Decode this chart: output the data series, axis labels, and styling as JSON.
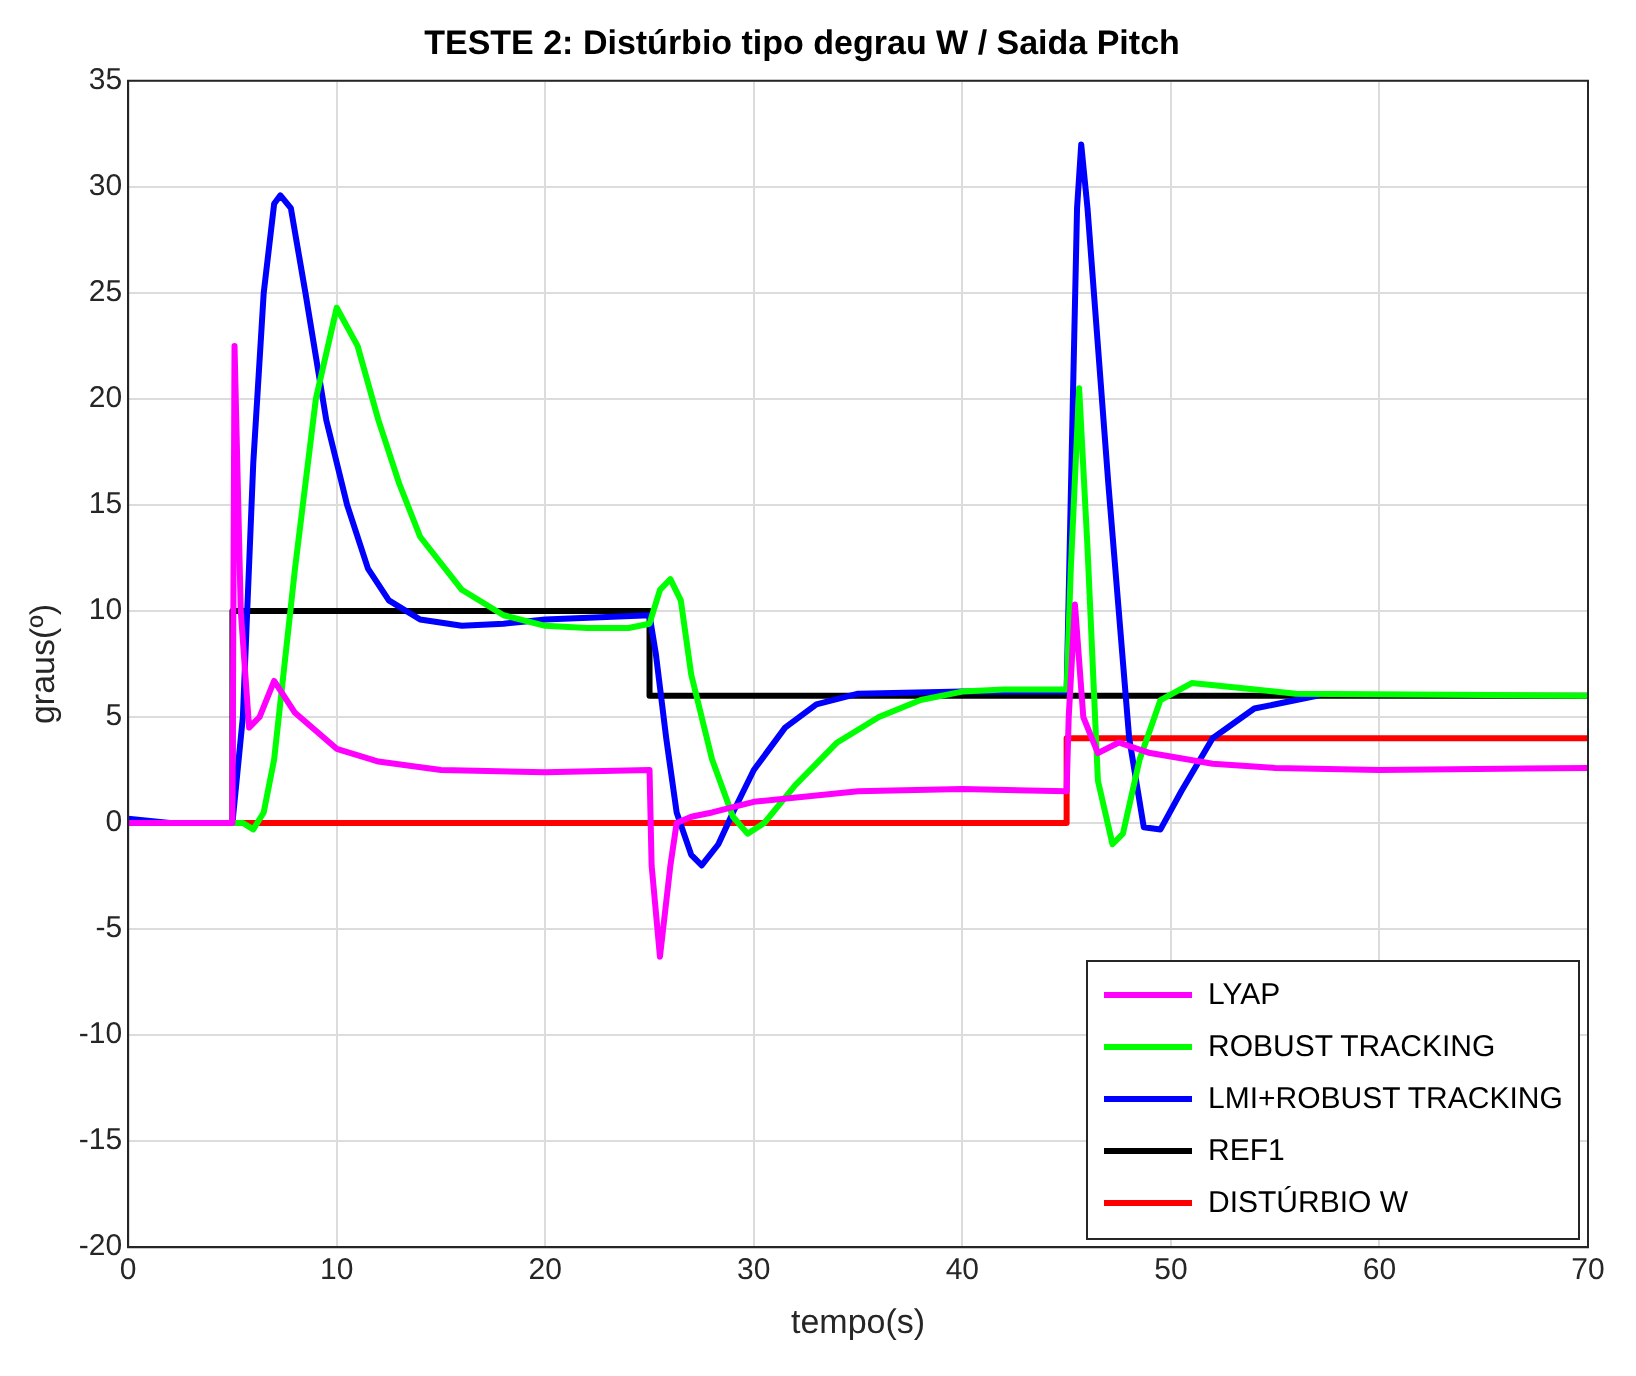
{
  "chart_data": {
    "type": "line",
    "title": "TESTE 2: Distúrbio tipo degrau W / Saida Pitch",
    "xlabel": "tempo(s)",
    "ylabel": "graus(º)",
    "xlim": [
      0,
      70
    ],
    "xticks": [
      0,
      10,
      20,
      30,
      40,
      50,
      60,
      70
    ],
    "ylim": [
      -20,
      35
    ],
    "yticks": [
      -20,
      -15,
      -10,
      -5,
      0,
      5,
      10,
      15,
      20,
      25,
      30,
      35
    ],
    "grid": true,
    "legend": "bottom right",
    "marker": "none",
    "line_style": "solid",
    "series": [
      {
        "name": "LYAP",
        "color": "#ff00ff",
        "x": [
          0,
          5,
          5.1,
          5.4,
          5.8,
          6.3,
          7,
          8,
          10,
          12,
          15,
          20,
          25,
          25.1,
          25.5,
          26,
          26.3,
          27,
          28,
          30,
          35,
          40,
          45,
          45.1,
          45.4,
          45.8,
          46.5,
          47.5,
          49,
          52,
          55,
          60,
          70
        ],
        "values": [
          0,
          0,
          22.5,
          10,
          4.5,
          5,
          6.7,
          5.2,
          3.5,
          2.9,
          2.5,
          2.4,
          2.5,
          -2,
          -6.3,
          -2,
          0,
          0.3,
          0.5,
          1,
          1.5,
          1.6,
          1.5,
          5,
          10.3,
          5,
          3.3,
          3.8,
          3.3,
          2.8,
          2.6,
          2.5,
          2.6
        ]
      },
      {
        "name": "ROBUST TRACKING",
        "color": "#00ff00",
        "x": [
          0,
          5,
          5.5,
          6,
          6.5,
          7,
          8,
          9,
          10,
          11,
          12,
          13,
          14,
          16,
          18,
          20,
          22,
          24,
          25,
          25.5,
          26,
          26.5,
          27,
          28,
          29,
          29.7,
          30.5,
          32,
          34,
          36,
          38,
          40,
          42,
          45,
          45.2,
          45.6,
          46,
          46.5,
          47.2,
          47.7,
          48.5,
          49.5,
          51,
          53,
          56,
          70
        ],
        "values": [
          0,
          0,
          0,
          -0.3,
          0.5,
          3,
          12,
          20,
          24.3,
          22.5,
          19,
          16,
          13.5,
          11,
          9.8,
          9.3,
          9.2,
          9.2,
          9.4,
          11,
          11.5,
          10.5,
          7,
          3,
          0.3,
          -0.5,
          0,
          1.8,
          3.8,
          5,
          5.8,
          6.2,
          6.3,
          6.3,
          12,
          20.5,
          13,
          2,
          -1,
          -0.5,
          3,
          5.8,
          6.6,
          6.4,
          6.1,
          6
        ]
      },
      {
        "name": "LMI+ROBUST TRACKING",
        "color": "#0000ff",
        "x": [
          0,
          2,
          5,
          5.5,
          6,
          6.5,
          7,
          7.3,
          7.8,
          8.5,
          9.5,
          10.5,
          11.5,
          12.5,
          14,
          16,
          18,
          20,
          25,
          25.3,
          25.8,
          26.3,
          27,
          27.5,
          28.3,
          29,
          30,
          31.5,
          33,
          35,
          40,
          45,
          45.3,
          45.5,
          45.7,
          46,
          47,
          48,
          48.7,
          49.5,
          50.5,
          52,
          54,
          57
        ],
        "values": [
          0.2,
          0,
          0,
          5,
          17,
          25,
          29.2,
          29.6,
          29,
          25,
          19,
          15,
          12,
          10.5,
          9.6,
          9.3,
          9.4,
          9.6,
          9.8,
          8,
          4,
          0.5,
          -1.5,
          -2,
          -1,
          0.5,
          2.5,
          4.5,
          5.6,
          6.1,
          6.2,
          6.2,
          20,
          29,
          32,
          29,
          16,
          4,
          -0.2,
          -0.3,
          1.5,
          4,
          5.4,
          6
        ]
      },
      {
        "name": "REF1",
        "color": "#000000",
        "x": [
          0,
          5,
          5,
          25,
          25,
          70
        ],
        "values": [
          0,
          0,
          10,
          10,
          6,
          6
        ]
      },
      {
        "name": "DISTÚRBIO W",
        "color": "#ff0000",
        "x": [
          0,
          45,
          45,
          70
        ],
        "values": [
          0,
          0,
          4,
          4
        ]
      }
    ]
  }
}
